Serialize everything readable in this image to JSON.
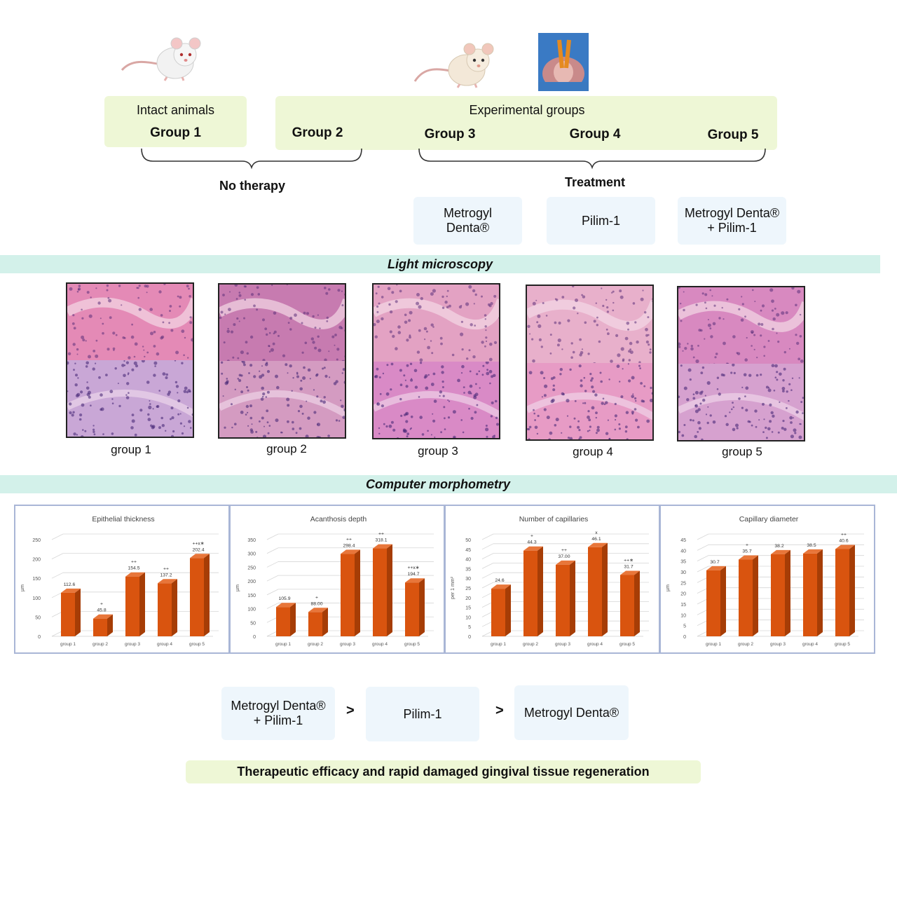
{
  "top": {
    "intact_label": "Intact animals",
    "experimental_label": "Experimental groups",
    "groups": [
      "Group 1",
      "Group 2",
      "Group 3",
      "Group 4",
      "Group 5"
    ],
    "no_therapy": "No therapy",
    "treatment": "Treatment",
    "treatments": [
      "Metrogyl Denta®",
      "Pilim-1",
      "Metrogyl Denta® + Pilim-1"
    ]
  },
  "light_microscopy": {
    "title": "Light microscopy",
    "captions": [
      "group 1",
      "group 2",
      "group 3",
      "group 4",
      "group 5"
    ]
  },
  "morphometry": {
    "title": "Computer morphometry"
  },
  "chart_data": [
    {
      "type": "bar",
      "title": "Epithelial thickness",
      "ylabel": "µm",
      "categories": [
        "group 1",
        "group 2",
        "group 3",
        "group 4",
        "group 5"
      ],
      "values": [
        112.6,
        45.8,
        154.5,
        137.2,
        202.4
      ],
      "value_labels": [
        "112.6",
        "45.8",
        "154.5",
        "137.2",
        "202.4"
      ],
      "marks": [
        "",
        "+",
        "++",
        "++",
        "++x∗"
      ],
      "ylim": [
        0,
        250
      ],
      "yticks": [
        0,
        50,
        100,
        150,
        200,
        250
      ]
    },
    {
      "type": "bar",
      "title": "Acanthosis depth",
      "ylabel": "µm",
      "categories": [
        "group 1",
        "group 2",
        "group 3",
        "group 4",
        "group 5"
      ],
      "values": [
        105.9,
        88.0,
        298.4,
        318.1,
        194.7
      ],
      "value_labels": [
        "105.9",
        "88.00",
        "298.4",
        "318.1",
        "194.7"
      ],
      "marks": [
        "",
        "+",
        "++",
        "++",
        "++x∗"
      ],
      "ylim": [
        0,
        350
      ],
      "yticks": [
        0,
        50,
        100,
        150,
        200,
        250,
        300,
        350
      ]
    },
    {
      "type": "bar",
      "title": "Number of capillaries",
      "ylabel": "per 1 mm²",
      "categories": [
        "group 1",
        "group 2",
        "group 3",
        "group 4",
        "group 5"
      ],
      "values": [
        24.6,
        44.3,
        37.0,
        46.1,
        31.7
      ],
      "value_labels": [
        "24.6",
        "44.3",
        "37.00",
        "46.1",
        "31.7"
      ],
      "marks": [
        "",
        "+",
        "++",
        "x",
        "++∗"
      ],
      "ylim": [
        0,
        50
      ],
      "yticks": [
        0,
        5,
        10,
        15,
        20,
        25,
        30,
        35,
        40,
        45,
        50
      ]
    },
    {
      "type": "bar",
      "title": "Capillary diameter",
      "ylabel": "µm",
      "categories": [
        "group 1",
        "group 2",
        "group 3",
        "group 4",
        "group 5"
      ],
      "values": [
        30.7,
        35.7,
        38.2,
        38.5,
        40.6
      ],
      "value_labels": [
        "30.7",
        "35.7",
        "38.2",
        "38.5",
        "40.6"
      ],
      "marks": [
        "",
        "+",
        "",
        "",
        "++"
      ],
      "ylim": [
        0,
        45
      ],
      "yticks": [
        0,
        5,
        10,
        15,
        20,
        25,
        30,
        35,
        40,
        45
      ]
    }
  ],
  "ranking": {
    "items": [
      "Metrogyl Denta® + Pilim-1",
      "Pilim-1",
      "Metrogyl Denta®"
    ],
    "separator": ">"
  },
  "conclusion": "Therapeutic efficacy and rapid damaged gingival tissue regeneration",
  "colors": {
    "bar_front": "#d9540f",
    "bar_side": "#a63d06",
    "bar_top": "#e8763a",
    "band": "#d3f1ea",
    "green_box": "#eef7d6",
    "blue_box": "#eef6fc"
  }
}
